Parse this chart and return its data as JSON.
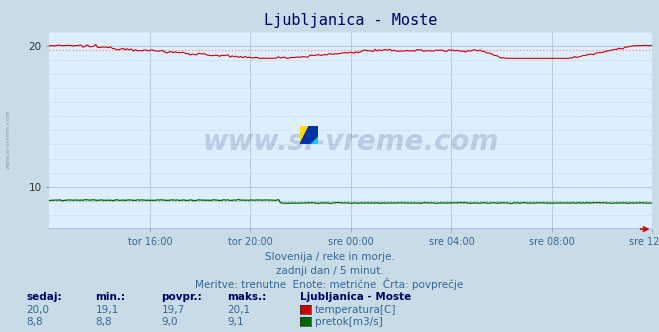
{
  "title": "Ljubljanica - Moste",
  "background_color": "#c8dce8",
  "plot_bg_color": "#ddeeff",
  "grid_color": "#b0cce0",
  "xlabel_color": "#336699",
  "title_color": "#000066",
  "ylim": [
    7.0,
    21.0
  ],
  "ytick_vals": [
    10,
    20
  ],
  "ytick_labels": [
    "10",
    "20"
  ],
  "x_tick_labels": [
    "tor 16:00",
    "tor 20:00",
    "sre 00:00",
    "sre 04:00",
    "sre 08:00",
    "sre 12:00"
  ],
  "temp_color": "#cc0000",
  "flow_color": "#006600",
  "avg_temp_color": "#ff8888",
  "avg_flow_color": "#88bb88",
  "watermark_text": "www.si-vreme.com",
  "watermark_color": "#1a3a7a",
  "watermark_alpha": 0.18,
  "left_label": "www.si-vreme.com",
  "subtitle1": "Slovenija / reke in morje.",
  "subtitle2": "zadnji dan / 5 minut.",
  "subtitle3": "Meritve: trenutne  Enote: metrične  Črta: povprečje",
  "subtitle_color": "#336699",
  "table_header": [
    "sedaj:",
    "min.:",
    "povpr.:",
    "maks.:",
    "Ljubljanica - Moste"
  ],
  "table_header_color": "#000066",
  "table_data": [
    [
      "20,0",
      "19,1",
      "19,7",
      "20,1",
      "temperatura[C]"
    ],
    [
      "8,8",
      "8,8",
      "9,0",
      "9,1",
      "pretok[m3/s]"
    ]
  ],
  "table_colors": [
    "#cc0000",
    "#006600"
  ],
  "table_data_color": "#336699",
  "n_points": 288,
  "temp_avg": 19.7,
  "flow_avg": 9.0,
  "baseline_color": "#0000cc",
  "arrow_color": "#cc0000"
}
